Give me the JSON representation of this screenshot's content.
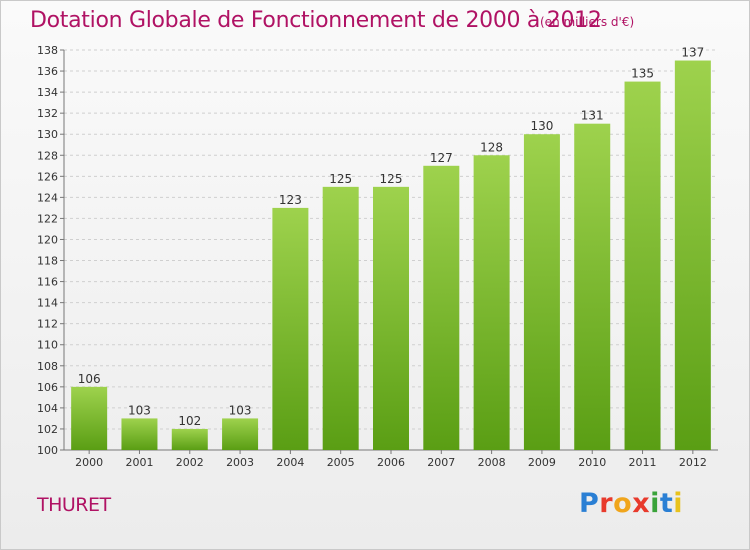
{
  "header": {
    "title": "Dotation Globale de Fonctionnement de 2000 à 2012",
    "unit": "(en milliers d'€)"
  },
  "footer": {
    "commune": "THURET",
    "logo_text": "Proxiti",
    "logo_colors": [
      "#2a7fd4",
      "#e83a2c",
      "#f0a51c",
      "#e83a2c",
      "#3aa33a",
      "#2a7fd4",
      "#e8c21c"
    ]
  },
  "colors": {
    "bar_top": "#9ed24d",
    "bar_bottom": "#5a9e14",
    "title": "#b01264"
  },
  "chart_data": {
    "type": "bar",
    "categories": [
      "2000",
      "2001",
      "2002",
      "2003",
      "2004",
      "2005",
      "2006",
      "2007",
      "2008",
      "2009",
      "2010",
      "2011",
      "2012"
    ],
    "values": [
      106,
      103,
      102,
      103,
      123,
      125,
      125,
      127,
      128,
      130,
      131,
      135,
      137
    ],
    "yticks": [
      100,
      102,
      104,
      106,
      108,
      110,
      112,
      114,
      116,
      118,
      120,
      122,
      124,
      126,
      128,
      130,
      132,
      134,
      136,
      138
    ],
    "ylim": [
      100,
      138
    ],
    "title": "Dotation Globale de Fonctionnement de 2000 à 2012",
    "xlabel": "",
    "ylabel": "",
    "grid": true
  }
}
